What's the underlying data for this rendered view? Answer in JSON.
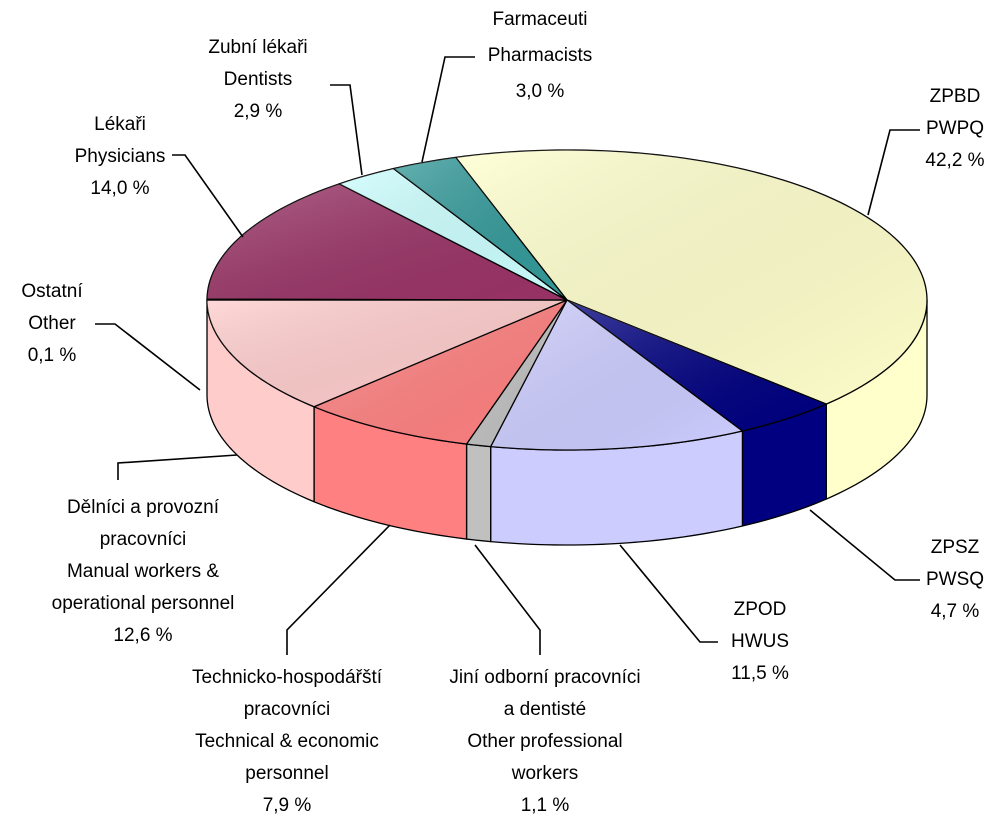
{
  "chart_data": {
    "type": "pie3d",
    "categories": [
      [
        "ZPBD",
        "PWPQ"
      ],
      [
        "ZPSZ",
        "PWSQ"
      ],
      [
        "ZPOD",
        "HWUS"
      ],
      [
        "Jiní odborní pracovníci",
        "a dentisté",
        "Other professional",
        "workers"
      ],
      [
        "Technicko-hospodářští",
        "pracovníci",
        "Technical & economic",
        "personnel"
      ],
      [
        "Dělníci a provozní",
        "pracovníci",
        "Manual workers &",
        "operational personnel"
      ],
      [
        "Ostatní",
        "Other"
      ],
      [
        "Lékaři",
        "Physicians"
      ],
      [
        "Zubní lékaři",
        "Dentists"
      ],
      [
        "Farmaceuti",
        "Pharmacists"
      ]
    ],
    "values": [
      42.2,
      4.7,
      11.5,
      1.1,
      7.9,
      12.6,
      0.1,
      14.0,
      2.9,
      3.0
    ],
    "value_labels": [
      "42,2 %",
      "4,7 %",
      "11,5 %",
      "1,1 %",
      "7,9 %",
      "12,6 %",
      "0,1 %",
      "14,0 %",
      "2,9 %",
      "3,0 %"
    ],
    "colors": [
      "#ffffcc",
      "#000080",
      "#ccccff",
      "#c0c0c0",
      "#ff8080",
      "#ffcccc",
      "#ff00ff",
      "#993366",
      "#ccffff",
      "#339999"
    ]
  }
}
